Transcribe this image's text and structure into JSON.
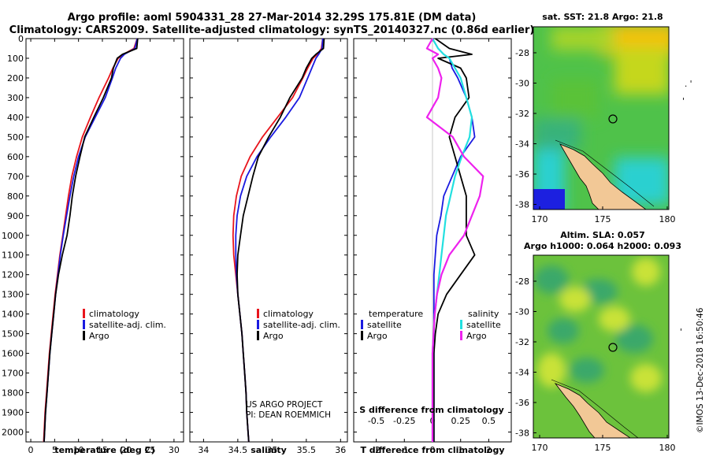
{
  "header": {
    "title1": "Argo profile: aoml 5904331_28 27-Mar-2014 32.29S 175.81E (DM data)",
    "title2": "Climatology: CARS2009. Satellite-adjusted climatology: synTS_20140327.nc (0.86d earlier)"
  },
  "credit": {
    "line1": "US ARGO PROJECT",
    "line2": "PI: DEAN ROEMMICH",
    "stamp": "©IMOS 13-Dec-2018 16:50:46"
  },
  "legend_left": [
    "climatology",
    "satellite-adj. clim.",
    "Argo"
  ],
  "legend_diff": {
    "temperature_head": "temperature",
    "salinity_head": "salinity",
    "temperature_items": [
      "satellite",
      "Argo"
    ],
    "salinity_items": [
      "satellite",
      "Argo"
    ]
  },
  "colors": {
    "climatology": "#e8141c",
    "satellite": "#1a1ae0",
    "argo": "#000000",
    "s_satellite": "#22e0e0",
    "s_argo": "#ee22ee",
    "land": "#f2c896"
  },
  "map_top": {
    "title": "sat. SST: 21.8 Argo: 21.8",
    "lon_ticks": [
      "170",
      "175",
      "180"
    ],
    "lat_ticks": [
      "-28",
      "-30",
      "-32",
      "-34",
      "-36",
      "-38"
    ],
    "argo_position": {
      "lon": 175.81,
      "lat": -32.29
    }
  },
  "map_bottom": {
    "title1": "Altim. SLA: 0.057",
    "title2": "Argo h1000: 0.064 h2000: 0.093",
    "lon_ticks": [
      "170",
      "175",
      "180"
    ],
    "lat_ticks": [
      "-28",
      "-30",
      "-32",
      "-34",
      "-36",
      "-38"
    ],
    "argo_position": {
      "lon": 175.81,
      "lat": -32.29
    }
  },
  "chart_data": [
    {
      "type": "line",
      "xlabel": "temperature (deg C)",
      "xlim": [
        -1,
        32
      ],
      "x_ticks": [
        0,
        5,
        10,
        15,
        20,
        25,
        30
      ],
      "ylim": [
        2050,
        0
      ],
      "y_ticks": [
        0,
        100,
        200,
        300,
        400,
        500,
        600,
        700,
        800,
        900,
        1000,
        1100,
        1200,
        1300,
        1400,
        1500,
        1600,
        1700,
        1800,
        1900,
        2000
      ],
      "depth": [
        0,
        50,
        80,
        100,
        150,
        200,
        300,
        400,
        500,
        600,
        700,
        800,
        900,
        1000,
        1100,
        1200,
        1300,
        1400,
        1500,
        1600,
        1700,
        1800,
        1900,
        2000,
        2050
      ],
      "series": [
        {
          "name": "climatology",
          "key": "climatology",
          "values": [
            22.3,
            21.6,
            19.4,
            18.3,
            17.2,
            16.3,
            14.3,
            12.5,
            10.8,
            9.6,
            8.6,
            7.9,
            7.3,
            6.7,
            6.1,
            5.6,
            5.1,
            4.7,
            4.3,
            3.9,
            3.6,
            3.3,
            3.0,
            2.8,
            2.7
          ]
        },
        {
          "name": "satellite-adj. clim.",
          "key": "satellite",
          "values": [
            22.3,
            21.8,
            19.6,
            18.8,
            17.8,
            17.1,
            15.6,
            13.5,
            11.4,
            10.0,
            9.0,
            8.2,
            7.5,
            6.8,
            6.2,
            5.7,
            5.2,
            4.8,
            4.4,
            4.0,
            3.7,
            3.4,
            3.1,
            2.9,
            2.8
          ]
        },
        {
          "name": "Argo",
          "key": "argo",
          "values": [
            22.4,
            22.2,
            19.2,
            18.1,
            17.3,
            16.9,
            15.2,
            13.2,
            11.3,
            10.3,
            9.4,
            8.7,
            8.2,
            7.6,
            6.6,
            5.8,
            5.2,
            4.8,
            4.4,
            4.0,
            3.7,
            3.4,
            3.1,
            2.9,
            2.8
          ]
        }
      ]
    },
    {
      "type": "line",
      "xlabel": "salinity",
      "xlim": [
        33.8,
        36.1
      ],
      "x_ticks": [
        34,
        34.5,
        35,
        35.5,
        36
      ],
      "ylim": [
        2050,
        0
      ],
      "depth": [
        0,
        50,
        80,
        100,
        150,
        200,
        300,
        400,
        500,
        600,
        700,
        800,
        900,
        1000,
        1100,
        1200,
        1300,
        1400,
        1500,
        1600,
        1700,
        1800,
        1900,
        2000,
        2050
      ],
      "series": [
        {
          "name": "climatology",
          "key": "climatology",
          "values": [
            35.74,
            35.72,
            35.66,
            35.6,
            35.52,
            35.45,
            35.3,
            35.08,
            34.86,
            34.68,
            34.55,
            34.48,
            34.44,
            34.43,
            34.44,
            34.47,
            34.5,
            34.53,
            34.56,
            34.58,
            34.6,
            34.62,
            34.63,
            34.65,
            34.66
          ]
        },
        {
          "name": "satellite-adj. clim.",
          "key": "satellite",
          "values": [
            35.74,
            35.73,
            35.68,
            35.64,
            35.58,
            35.52,
            35.4,
            35.2,
            34.98,
            34.78,
            34.63,
            34.54,
            34.49,
            34.47,
            34.47,
            34.48,
            34.5,
            34.53,
            34.56,
            34.58,
            34.6,
            34.62,
            34.63,
            34.65,
            34.66
          ]
        },
        {
          "name": "Argo",
          "key": "argo",
          "values": [
            35.76,
            35.75,
            35.64,
            35.58,
            35.5,
            35.44,
            35.26,
            35.12,
            34.95,
            34.8,
            34.72,
            34.65,
            34.58,
            34.54,
            34.5,
            34.49,
            34.5,
            34.53,
            34.56,
            34.58,
            34.6,
            34.62,
            34.63,
            34.65,
            34.66
          ]
        }
      ]
    },
    {
      "type": "line",
      "xlabel": "T difference from climatology",
      "xlim": [
        -2.8,
        2.8
      ],
      "x_ticks": [
        -2,
        -1,
        0,
        1,
        2
      ],
      "s_xlabel": "S difference from climatology",
      "s_ticks": [
        "-0.5",
        "-0.25",
        "0",
        "0.25",
        "0.5"
      ],
      "ylim": [
        2050,
        0
      ],
      "depth": [
        0,
        50,
        80,
        100,
        150,
        200,
        300,
        400,
        500,
        600,
        700,
        800,
        900,
        1000,
        1100,
        1200,
        1300,
        1400,
        1500,
        1600,
        1700,
        1800,
        1900,
        2000,
        2050
      ],
      "series": [
        {
          "name": "satellite",
          "key": "satellite",
          "values": [
            0.0,
            0.2,
            0.4,
            0.6,
            0.7,
            0.9,
            1.2,
            1.4,
            1.5,
            1.0,
            0.7,
            0.4,
            0.3,
            0.15,
            0.1,
            0.05,
            0.05,
            0.05,
            0.05,
            0.05,
            0.05,
            0.05,
            0.05,
            0.05,
            0.05
          ]
        },
        {
          "name": "Argo",
          "key": "argo",
          "values": [
            0.1,
            0.6,
            1.4,
            0.2,
            1.0,
            1.2,
            1.3,
            0.8,
            0.6,
            0.8,
            1.0,
            1.2,
            1.2,
            1.2,
            1.5,
            1.0,
            0.5,
            0.2,
            0.1,
            0.05,
            0.05,
            0.05,
            0.05,
            0.05,
            0.05
          ]
        },
        {
          "name": "satellite",
          "key": "s_satellite",
          "values": [
            0.0,
            0.05,
            0.1,
            0.15,
            0.2,
            0.25,
            0.3,
            0.35,
            0.33,
            0.26,
            0.2,
            0.16,
            0.12,
            0.1,
            0.08,
            0.06,
            0.04,
            0.02,
            0.01,
            0.0,
            0.0,
            0.0,
            0.0,
            0.0,
            0.0
          ]
        },
        {
          "name": "Argo",
          "key": "s_argo",
          "values": [
            0.0,
            -0.05,
            0.05,
            0.0,
            0.05,
            0.08,
            0.05,
            -0.05,
            0.18,
            0.28,
            0.45,
            0.42,
            0.35,
            0.28,
            0.15,
            0.08,
            0.04,
            0.02,
            0.01,
            0.0,
            0.0,
            0.0,
            0.0,
            0.0,
            0.0
          ]
        }
      ]
    }
  ]
}
